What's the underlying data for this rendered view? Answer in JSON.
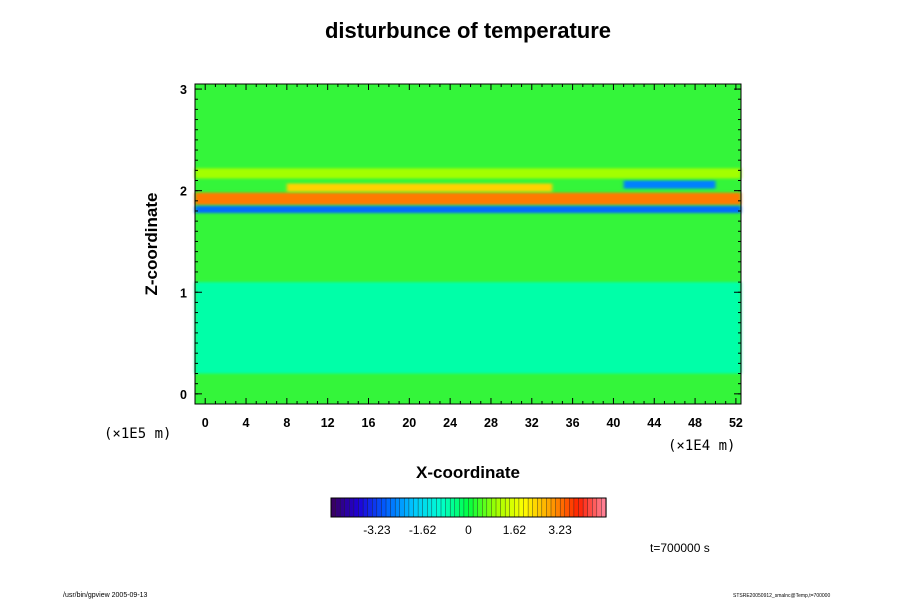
{
  "chart_data": {
    "type": "heatmap",
    "title": "disturbunce of temperature",
    "xlabel": "X-coordinate",
    "ylabel": "Z-coordinate",
    "x_unit": "(×1E4 m)",
    "y_unit": "(×1E5 m)",
    "xlim": [
      -1,
      52.5
    ],
    "ylim": [
      -0.1,
      3.05
    ],
    "x_ticks": [
      "0",
      "4",
      "8",
      "12",
      "16",
      "20",
      "24",
      "28",
      "32",
      "36",
      "40",
      "44",
      "48",
      "52"
    ],
    "y_ticks": [
      "0",
      "1",
      "2",
      "3"
    ],
    "x_tick_values": [
      0,
      4,
      8,
      12,
      16,
      20,
      24,
      28,
      32,
      36,
      40,
      44,
      48,
      52
    ],
    "y_tick_values": [
      0,
      1,
      2,
      3
    ],
    "colorbar": {
      "labels": [
        "-3.23",
        "-1.62",
        "0",
        "1.62",
        "3.23"
      ],
      "label_values": [
        -3.23,
        -1.62,
        0,
        1.62,
        3.23
      ],
      "range": [
        -4.85,
        4.85
      ],
      "colors": [
        "#3a005c",
        "#1e00d8",
        "#0060ff",
        "#00c8ff",
        "#00ffd0",
        "#00ff40",
        "#a0ff00",
        "#ffff00",
        "#ffa000",
        "#ff2000",
        "#ff88a0"
      ]
    },
    "grid": false,
    "bands": [
      {
        "z_range": [
          1.86,
          1.98
        ],
        "value": 3.2,
        "x_range": [
          -1,
          52.5
        ]
      },
      {
        "z_range": [
          1.99,
          2.07
        ],
        "value": 2.4,
        "x_range": [
          8,
          34
        ]
      },
      {
        "z_range": [
          1.78,
          1.85
        ],
        "value": -2.8,
        "x_range": [
          -1,
          52.5
        ]
      },
      {
        "z_range": [
          2.02,
          2.1
        ],
        "value": -2.6,
        "x_range": [
          41,
          50
        ]
      },
      {
        "z_range": [
          2.12,
          2.22
        ],
        "value": 1.0,
        "x_range": [
          -1,
          52.5
        ]
      },
      {
        "z_range": [
          0.2,
          1.1
        ],
        "value": -0.7,
        "x_range": [
          -1,
          52.5
        ]
      }
    ]
  },
  "time_label": "t=700000 s",
  "footer_left": "/usr/bin/gpview 2005-09-13",
  "footer_right": "STSRE20050912_smalnc@Temp,t=700000"
}
